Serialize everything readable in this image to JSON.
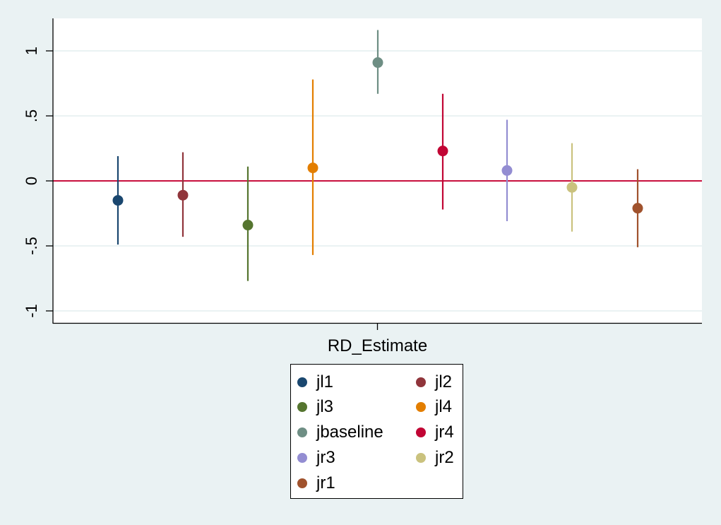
{
  "chart_data": {
    "type": "scatter",
    "subtype": "coefficient-plot-with-confidence-intervals",
    "title": "",
    "xlabel": "RD_Estimate",
    "ylabel": "",
    "categories": [
      "RD_Estimate"
    ],
    "ylim": [
      -1.1,
      1.25
    ],
    "yticks": [
      1,
      0.5,
      0,
      -0.5,
      -1
    ],
    "ytick_labels": [
      "1",
      ".5",
      "0",
      "-.5",
      "-1"
    ],
    "grid": true,
    "reference_line": {
      "y": 0,
      "color": "#C8103E"
    },
    "legend_position": "bottom",
    "legend_columns": 2,
    "series": [
      {
        "name": "jl1",
        "color": "#1A476F",
        "estimate": -0.15,
        "ci_low": -0.49,
        "ci_high": 0.19
      },
      {
        "name": "jl2",
        "color": "#90353B",
        "estimate": -0.11,
        "ci_low": -0.43,
        "ci_high": 0.22
      },
      {
        "name": "jl3",
        "color": "#55752F",
        "estimate": -0.34,
        "ci_low": -0.77,
        "ci_high": 0.11
      },
      {
        "name": "jl4",
        "color": "#E37E00",
        "estimate": 0.1,
        "ci_low": -0.57,
        "ci_high": 0.78
      },
      {
        "name": "jbaseline",
        "color": "#6E8E84",
        "estimate": 0.91,
        "ci_low": 0.67,
        "ci_high": 1.16
      },
      {
        "name": "jr4",
        "color": "#C10534",
        "estimate": 0.23,
        "ci_low": -0.22,
        "ci_high": 0.67
      },
      {
        "name": "jr3",
        "color": "#938DD2",
        "estimate": 0.08,
        "ci_low": -0.31,
        "ci_high": 0.47
      },
      {
        "name": "jr2",
        "color": "#CAC27E",
        "estimate": -0.05,
        "ci_low": -0.39,
        "ci_high": 0.29
      },
      {
        "name": "jr1",
        "color": "#A0522D",
        "estimate": -0.21,
        "ci_low": -0.51,
        "ci_high": 0.09
      }
    ]
  },
  "axis": {
    "x_label": "RD_Estimate",
    "y_tick_labels": [
      "1",
      ".5",
      "0",
      "-.5",
      "-1"
    ]
  },
  "legend": {
    "items": [
      {
        "label": "jl1",
        "color": "#1A476F"
      },
      {
        "label": "jl2",
        "color": "#90353B"
      },
      {
        "label": "jl3",
        "color": "#55752F"
      },
      {
        "label": "jl4",
        "color": "#E37E00"
      },
      {
        "label": "jbaseline",
        "color": "#6E8E84"
      },
      {
        "label": "jr4",
        "color": "#C10534"
      },
      {
        "label": "jr3",
        "color": "#938DD2"
      },
      {
        "label": "jr2",
        "color": "#CAC27E"
      },
      {
        "label": "jr1",
        "color": "#A0522D"
      }
    ]
  }
}
